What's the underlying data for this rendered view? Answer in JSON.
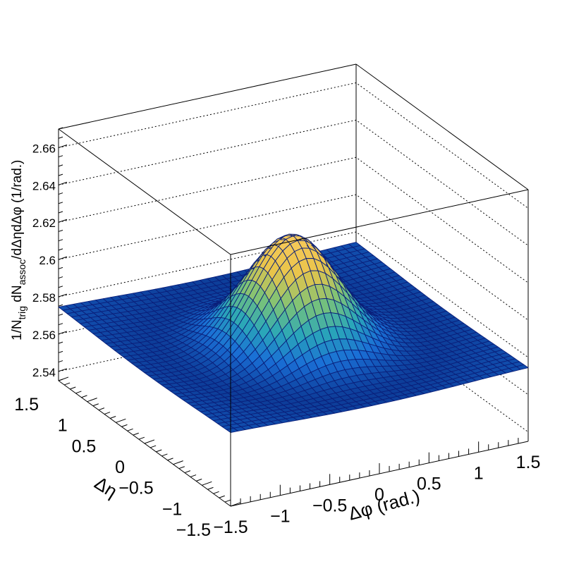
{
  "chart_data": {
    "type": "surface",
    "xlabel": "Δφ (rad.)",
    "ylabel": "Δη",
    "zlabel": "1/N_trig dN_assoc/dΔηdΔφ (1/rad.)",
    "zlabel_parts": {
      "a": "1/N",
      "a_sub": "trig",
      "b": " dN",
      "b_sub": "assoc",
      "c": "/dΔηdΔφ (1/rad.)"
    },
    "xlim": [
      -1.5,
      1.5
    ],
    "ylim": [
      -1.5,
      1.5
    ],
    "zlim": [
      2.535,
      2.67
    ],
    "x_ticks": [
      "−1.5",
      "−1",
      "−0.5",
      "0",
      "0.5",
      "1",
      "1.5"
    ],
    "x_tick_values": [
      -1.5,
      -1,
      -0.5,
      0,
      0.5,
      1,
      1.5
    ],
    "y_ticks": [
      "−1.5",
      "−1",
      "−0.5",
      "0",
      "0.5",
      "1",
      "1.5"
    ],
    "y_tick_values": [
      -1.5,
      -1,
      -0.5,
      0,
      0.5,
      1,
      1.5
    ],
    "z_ticks": [
      "2.54",
      "2.56",
      "2.58",
      "2.6",
      "2.62",
      "2.64",
      "2.66"
    ],
    "z_tick_values": [
      2.54,
      2.56,
      2.58,
      2.6,
      2.62,
      2.64,
      2.66
    ],
    "grid": true,
    "surface": {
      "baseline": 2.575,
      "peak_amplitude": 0.062,
      "peak_center": [
        0,
        0
      ],
      "peak_sigma": [
        0.42,
        0.46
      ],
      "dip_amplitude": 0.008,
      "dip_sigma_scale": 1.9,
      "mesh_bins": 40
    },
    "colormap": [
      "#0d3d99",
      "#1a6fd6",
      "#2aa7b8",
      "#7cc377",
      "#e8c44a",
      "#f7c95a"
    ],
    "mesh_line_color": "#0a1f7a"
  }
}
